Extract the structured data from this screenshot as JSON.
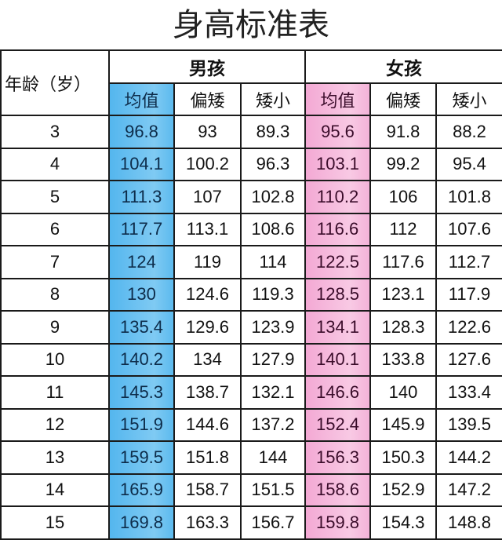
{
  "title": "身高标准表",
  "header": {
    "age": "年龄（岁）",
    "boys": "男孩",
    "girls": "女孩",
    "sub": [
      "均值",
      "偏矮",
      "矮小"
    ]
  },
  "colors": {
    "boy_mean": "#5bbcf0",
    "girl_mean": "#f5b8dc"
  },
  "rows": [
    {
      "age": "3",
      "boy": [
        "96.8",
        "93",
        "89.3"
      ],
      "girl": [
        "95.6",
        "91.8",
        "88.2"
      ]
    },
    {
      "age": "4",
      "boy": [
        "104.1",
        "100.2",
        "96.3"
      ],
      "girl": [
        "103.1",
        "99.2",
        "95.4"
      ]
    },
    {
      "age": "5",
      "boy": [
        "111.3",
        "107",
        "102.8"
      ],
      "girl": [
        "110.2",
        "106",
        "101.8"
      ]
    },
    {
      "age": "6",
      "boy": [
        "117.7",
        "113.1",
        "108.6"
      ],
      "girl": [
        "116.6",
        "112",
        "107.6"
      ]
    },
    {
      "age": "7",
      "boy": [
        "124",
        "119",
        "114"
      ],
      "girl": [
        "122.5",
        "117.6",
        "112.7"
      ]
    },
    {
      "age": "8",
      "boy": [
        "130",
        "124.6",
        "119.3"
      ],
      "girl": [
        "128.5",
        "123.1",
        "117.9"
      ]
    },
    {
      "age": "9",
      "boy": [
        "135.4",
        "129.6",
        "123.9"
      ],
      "girl": [
        "134.1",
        "128.3",
        "122.6"
      ]
    },
    {
      "age": "10",
      "boy": [
        "140.2",
        "134",
        "127.9"
      ],
      "girl": [
        "140.1",
        "133.8",
        "127.6"
      ]
    },
    {
      "age": "11",
      "boy": [
        "145.3",
        "138.7",
        "132.1"
      ],
      "girl": [
        "146.6",
        "140",
        "133.4"
      ]
    },
    {
      "age": "12",
      "boy": [
        "151.9",
        "144.6",
        "137.2"
      ],
      "girl": [
        "152.4",
        "145.9",
        "139.5"
      ]
    },
    {
      "age": "13",
      "boy": [
        "159.5",
        "151.8",
        "144"
      ],
      "girl": [
        "156.3",
        "150.3",
        "144.2"
      ]
    },
    {
      "age": "14",
      "boy": [
        "165.9",
        "158.7",
        "151.5"
      ],
      "girl": [
        "158.6",
        "152.9",
        "147.2"
      ]
    },
    {
      "age": "15",
      "boy": [
        "169.8",
        "163.3",
        "156.7"
      ],
      "girl": [
        "159.8",
        "154.3",
        "148.8"
      ]
    }
  ]
}
